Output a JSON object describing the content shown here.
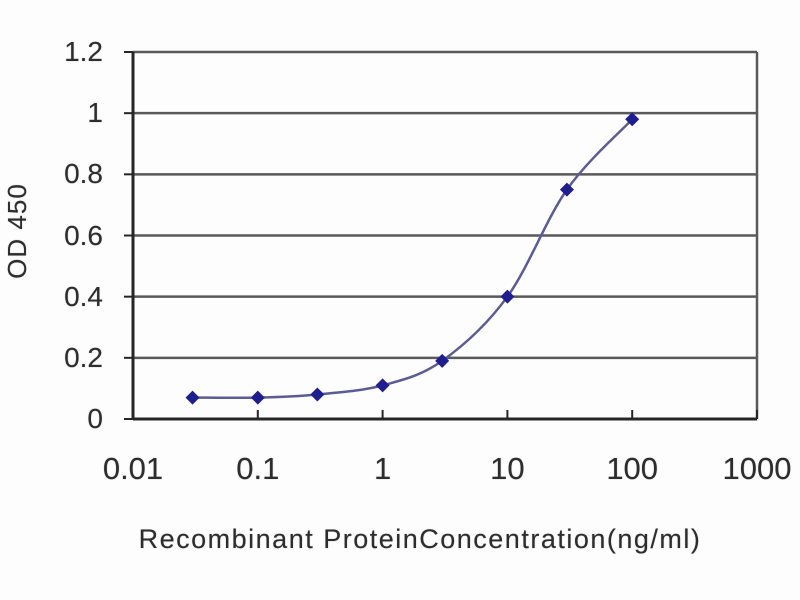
{
  "chart_data": {
    "type": "line",
    "title": "",
    "xlabel": "Recombinant ProteinConcentration(ng/ml)",
    "ylabel": "OD 450",
    "x_scale": "log",
    "xlim": [
      0.01,
      1000
    ],
    "ylim": [
      0,
      1.2
    ],
    "x_ticks": [
      "0.01",
      "0.1",
      "1",
      "10",
      "100",
      "1000"
    ],
    "y_ticks": [
      "0",
      "0.2",
      "0.4",
      "0.6",
      "0.8",
      "1",
      "1.2"
    ],
    "x": [
      0.03,
      0.1,
      0.3,
      1,
      3,
      10,
      30,
      100
    ],
    "y": [
      0.07,
      0.07,
      0.08,
      0.11,
      0.19,
      0.4,
      0.75,
      0.98
    ],
    "marker": "diamond",
    "grid": "horizontal",
    "legend": "none",
    "colors": {
      "marker": "#1e1e8f",
      "line": "#5c5c94",
      "grid": "#5a5a5a",
      "axis": "#262626",
      "text": "#2d2d2d",
      "background": "#fdfdfd"
    }
  }
}
